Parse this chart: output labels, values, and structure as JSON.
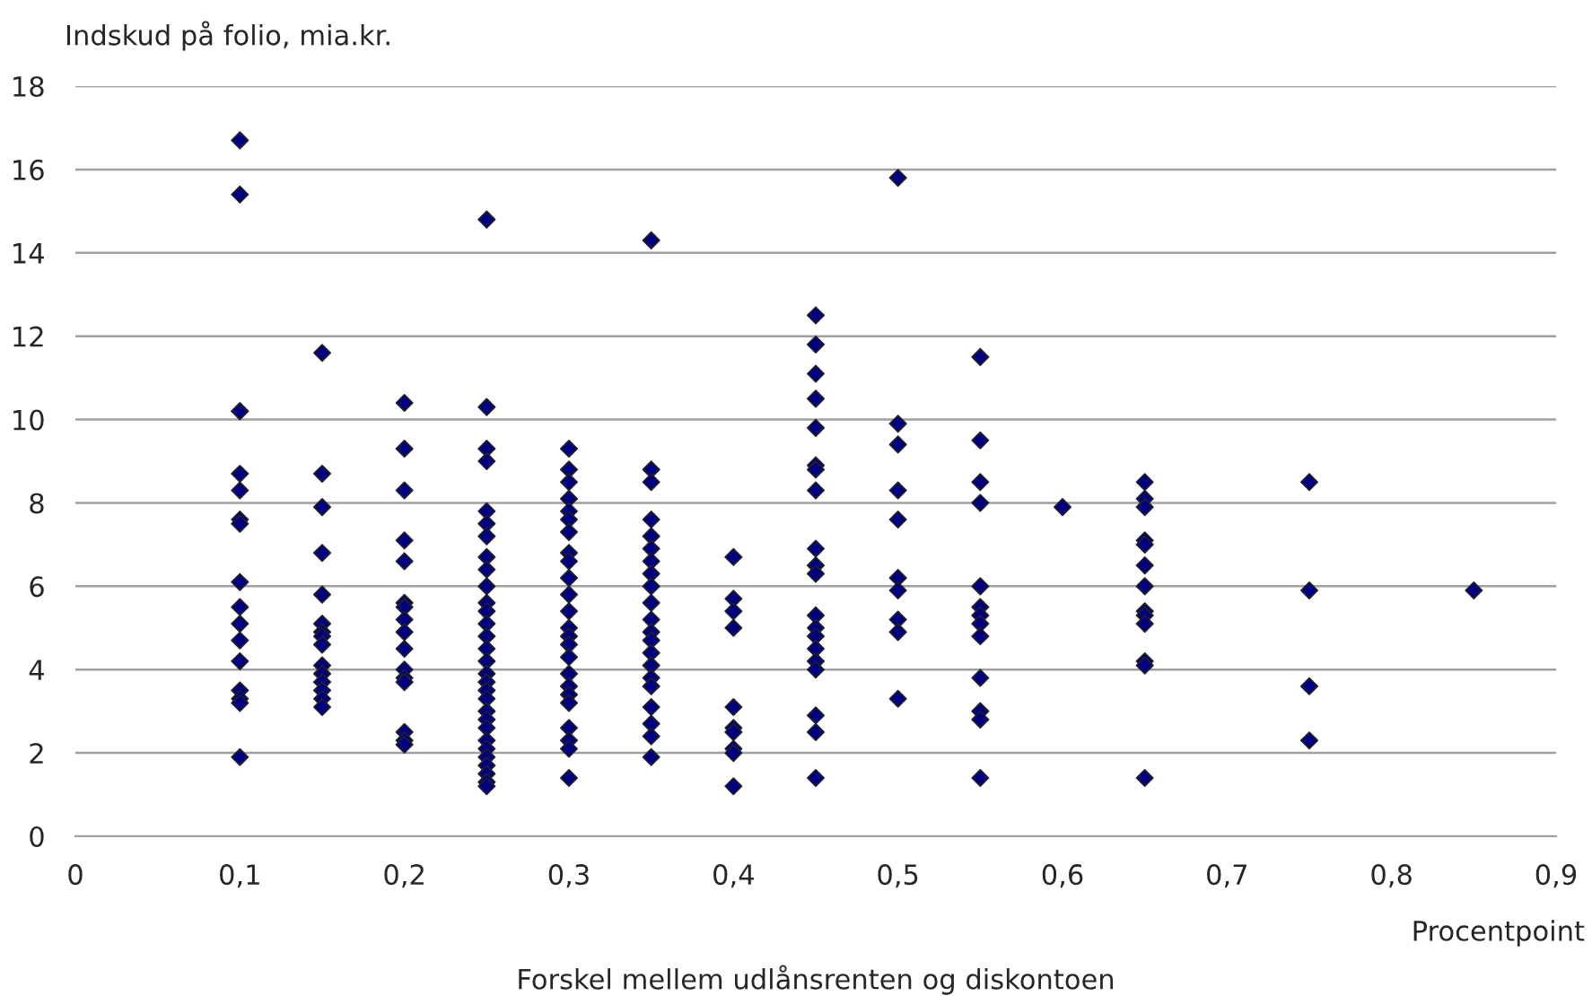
{
  "chart_data": {
    "type": "scatter",
    "ylabel": "Indskud på folio, mia.kr.",
    "xlabel": "Forskel mellem udlånsrenten og diskontoen",
    "annotations": [
      "Procentpoint"
    ],
    "xlim": [
      0,
      0.9
    ],
    "xticks": [
      0,
      {
        "value": 0.1,
        "label": "0,1"
      },
      {
        "value": 0.2,
        "label": "0,2"
      },
      {
        "value": 0.3,
        "label": "0,3"
      },
      {
        "value": 0.4,
        "label": "0,4"
      },
      {
        "value": 0.5,
        "label": "0,5"
      },
      {
        "value": 0.6,
        "label": "0,6"
      },
      {
        "value": 0.7,
        "label": "0,7"
      },
      {
        "value": 0.8,
        "label": "0,8"
      },
      {
        "value": 0.9,
        "label": "0,9"
      }
    ],
    "ylim": [
      0,
      18
    ],
    "yticks": [
      0,
      2,
      4,
      6,
      8,
      10,
      12,
      14,
      16,
      18
    ],
    "grid": "y",
    "marker": "diamond",
    "series": [
      {
        "color": "#000080",
        "x": [
          0.1,
          0.1,
          0.1,
          0.1,
          0.1,
          0.1,
          0.1,
          0.1,
          0.1,
          0.1,
          0.1,
          0.1,
          0.1,
          0.1,
          0.1,
          0.1,
          0.1,
          0.15,
          0.15,
          0.15,
          0.15,
          0.15,
          0.15,
          0.15,
          0.15,
          0.15,
          0.15,
          0.15,
          0.15,
          0.15,
          0.15,
          0.15,
          0.2,
          0.2,
          0.2,
          0.2,
          0.2,
          0.2,
          0.2,
          0.2,
          0.2,
          0.2,
          0.2,
          0.2,
          0.2,
          0.2,
          0.2,
          0.2,
          0.25,
          0.25,
          0.25,
          0.25,
          0.25,
          0.25,
          0.25,
          0.25,
          0.25,
          0.25,
          0.25,
          0.25,
          0.25,
          0.25,
          0.25,
          0.25,
          0.25,
          0.25,
          0.25,
          0.25,
          0.25,
          0.25,
          0.25,
          0.25,
          0.25,
          0.25,
          0.25,
          0.25,
          0.25,
          0.25,
          0.3,
          0.3,
          0.3,
          0.3,
          0.3,
          0.3,
          0.3,
          0.3,
          0.3,
          0.3,
          0.3,
          0.3,
          0.3,
          0.3,
          0.3,
          0.3,
          0.3,
          0.3,
          0.3,
          0.3,
          0.3,
          0.3,
          0.3,
          0.3,
          0.35,
          0.35,
          0.35,
          0.35,
          0.35,
          0.35,
          0.35,
          0.35,
          0.35,
          0.35,
          0.35,
          0.35,
          0.35,
          0.35,
          0.35,
          0.35,
          0.35,
          0.35,
          0.35,
          0.35,
          0.35,
          0.4,
          0.4,
          0.4,
          0.4,
          0.4,
          0.4,
          0.4,
          0.4,
          0.4,
          0.4,
          0.45,
          0.45,
          0.45,
          0.45,
          0.45,
          0.45,
          0.45,
          0.45,
          0.45,
          0.45,
          0.45,
          0.45,
          0.45,
          0.45,
          0.45,
          0.45,
          0.45,
          0.45,
          0.45,
          0.45,
          0.5,
          0.5,
          0.5,
          0.5,
          0.5,
          0.5,
          0.5,
          0.5,
          0.5,
          0.5,
          0.55,
          0.55,
          0.55,
          0.55,
          0.55,
          0.55,
          0.55,
          0.55,
          0.55,
          0.55,
          0.55,
          0.55,
          0.55,
          0.6,
          0.65,
          0.65,
          0.65,
          0.65,
          0.65,
          0.65,
          0.65,
          0.65,
          0.65,
          0.65,
          0.65,
          0.65,
          0.65,
          0.75,
          0.75,
          0.75,
          0.75,
          0.85
        ],
        "values": [
          16.7,
          15.4,
          10.2,
          10.2,
          8.7,
          8.3,
          7.6,
          7.5,
          6.1,
          5.5,
          5.1,
          4.7,
          4.2,
          3.5,
          3.3,
          3.2,
          1.9,
          11.6,
          8.7,
          7.9,
          6.8,
          5.8,
          5.1,
          4.9,
          4.8,
          4.6,
          4.1,
          3.9,
          3.7,
          3.5,
          3.3,
          3.1,
          10.4,
          9.3,
          8.3,
          7.1,
          6.6,
          5.6,
          5.5,
          5.2,
          4.9,
          4.5,
          4.0,
          3.8,
          3.7,
          2.5,
          2.3,
          2.2,
          14.8,
          10.3,
          9.3,
          9.0,
          7.8,
          7.5,
          7.2,
          6.7,
          6.4,
          6.0,
          5.6,
          5.4,
          5.1,
          4.8,
          4.5,
          4.2,
          3.9,
          3.7,
          3.5,
          3.3,
          3.0,
          2.8,
          2.6,
          2.3,
          2.1,
          1.9,
          1.7,
          1.5,
          1.3,
          1.2,
          9.3,
          8.8,
          8.5,
          8.1,
          7.8,
          7.6,
          7.3,
          6.8,
          6.6,
          6.2,
          5.8,
          5.4,
          5.0,
          4.8,
          4.6,
          4.3,
          3.9,
          3.6,
          3.4,
          3.2,
          2.6,
          2.3,
          2.1,
          1.4,
          14.3,
          8.8,
          8.5,
          7.6,
          7.2,
          6.9,
          6.6,
          6.3,
          6.0,
          5.6,
          5.2,
          4.9,
          4.7,
          4.4,
          4.1,
          3.8,
          3.6,
          3.1,
          2.7,
          2.4,
          1.9,
          6.7,
          5.7,
          5.4,
          5.0,
          3.1,
          2.6,
          2.5,
          2.1,
          2.0,
          1.2,
          12.5,
          11.8,
          11.1,
          10.5,
          9.8,
          8.9,
          8.8,
          8.3,
          6.9,
          6.5,
          6.3,
          5.3,
          5.0,
          4.8,
          4.5,
          4.2,
          4.0,
          2.9,
          2.5,
          1.4,
          15.8,
          9.9,
          9.4,
          8.3,
          7.6,
          6.2,
          5.9,
          5.2,
          4.9,
          3.3,
          11.5,
          9.5,
          8.5,
          8.0,
          6.0,
          5.5,
          5.3,
          5.1,
          4.8,
          3.8,
          3.0,
          2.8,
          1.4,
          7.9,
          8.5,
          8.1,
          7.9,
          7.1,
          7.0,
          6.5,
          6.0,
          5.4,
          5.3,
          5.1,
          4.2,
          4.1,
          1.4,
          8.5,
          5.9,
          3.6,
          2.3,
          5.9
        ]
      }
    ]
  }
}
